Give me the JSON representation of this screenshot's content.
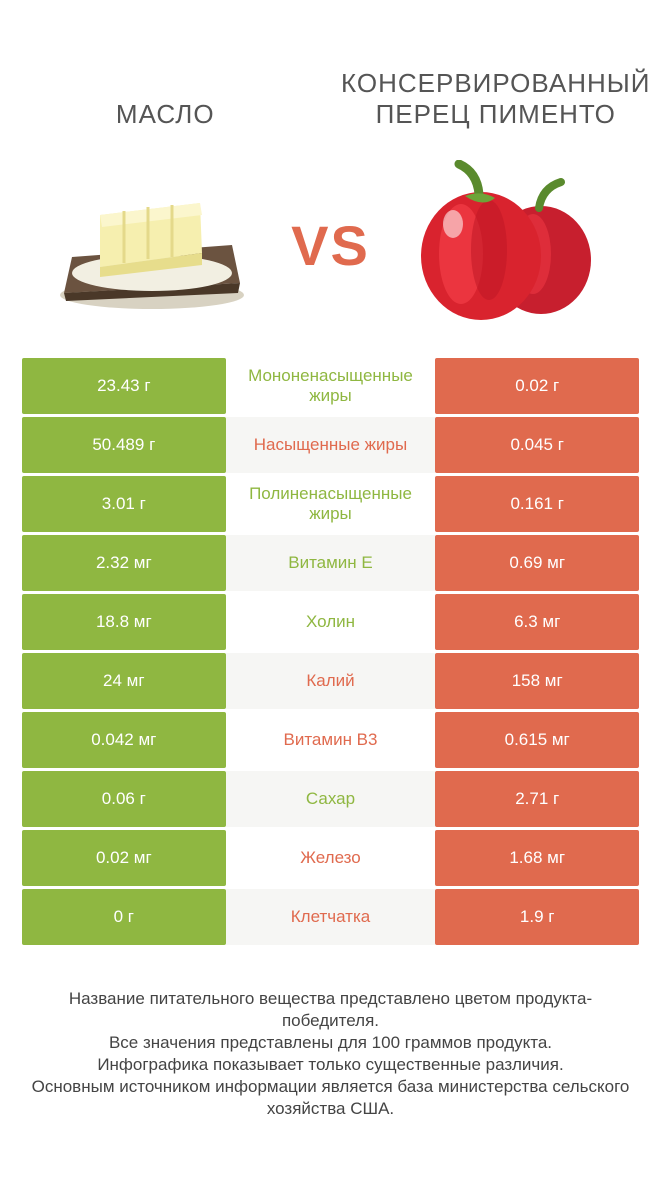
{
  "colors": {
    "green": "#8fb741",
    "orange": "#e06a4e",
    "mid_bg_alt": "#f6f6f4",
    "mid_bg": "#ffffff",
    "text": "#444444"
  },
  "header": {
    "left_title": "Масло",
    "right_title": "Консервированный перец Пименто",
    "vs": "VS"
  },
  "rows": [
    {
      "left": "23.43 г",
      "label": "Мононенасыщенные жиры",
      "right": "0.02 г",
      "winner": "left"
    },
    {
      "left": "50.489 г",
      "label": "Насыщенные жиры",
      "right": "0.045 г",
      "winner": "right"
    },
    {
      "left": "3.01 г",
      "label": "Полиненасыщенные жиры",
      "right": "0.161 г",
      "winner": "left"
    },
    {
      "left": "2.32 мг",
      "label": "Витамин E",
      "right": "0.69 мг",
      "winner": "left"
    },
    {
      "left": "18.8 мг",
      "label": "Холин",
      "right": "6.3 мг",
      "winner": "left"
    },
    {
      "left": "24 мг",
      "label": "Калий",
      "right": "158 мг",
      "winner": "right"
    },
    {
      "left": "0.042 мг",
      "label": "Витамин B3",
      "right": "0.615 мг",
      "winner": "right"
    },
    {
      "left": "0.06 г",
      "label": "Сахар",
      "right": "2.71 г",
      "winner": "left"
    },
    {
      "left": "0.02 мг",
      "label": "Железо",
      "right": "1.68 мг",
      "winner": "right"
    },
    {
      "left": "0 г",
      "label": "Клетчатка",
      "right": "1.9 г",
      "winner": "right"
    }
  ],
  "footer": {
    "line1": "Название питательного вещества представлено цветом продукта-победителя.",
    "line2": "Все значения представлены для 100 граммов продукта.",
    "line3": "Инфографика показывает только существенные различия.",
    "line4": "Основным источником информации является база министерства сельского хозяйства США."
  }
}
